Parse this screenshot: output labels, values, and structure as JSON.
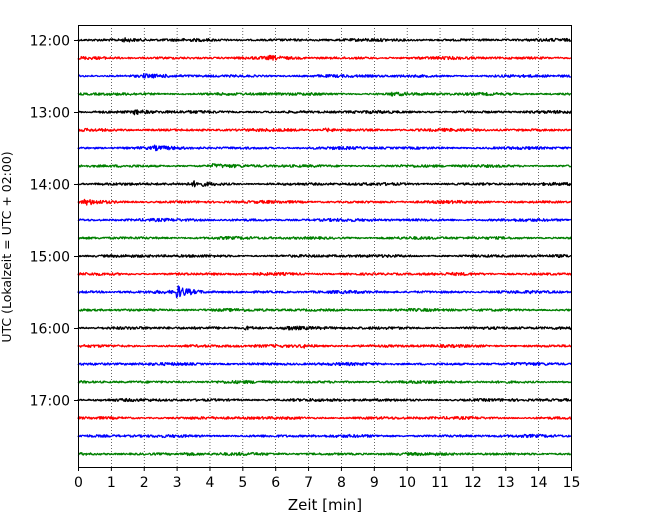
{
  "chart_data": {
    "type": "line",
    "subtype": "helicorder",
    "title": "",
    "xlabel": "Zeit  [min]",
    "ylabel": "UTC (Lokalzeit = UTC + 02:00)",
    "xlim": [
      0,
      15
    ],
    "x_ticks": [
      0,
      1,
      2,
      3,
      4,
      5,
      6,
      7,
      8,
      9,
      10,
      11,
      12,
      13,
      14,
      15
    ],
    "x_grid": "dotted vertical lines at each minute",
    "trace_interval_min": 15,
    "trace_colors": [
      "#000000",
      "#ff0000",
      "#0000ff",
      "#008000"
    ],
    "y_tick_labels": [
      "12:00",
      "13:00",
      "14:00",
      "15:00",
      "16:00",
      "17:00"
    ],
    "traces": [
      {
        "start": "12:00",
        "color": "#000000"
      },
      {
        "start": "12:15",
        "color": "#ff0000"
      },
      {
        "start": "12:30",
        "color": "#0000ff"
      },
      {
        "start": "12:45",
        "color": "#008000"
      },
      {
        "start": "13:00",
        "color": "#000000"
      },
      {
        "start": "13:15",
        "color": "#ff0000"
      },
      {
        "start": "13:30",
        "color": "#0000ff"
      },
      {
        "start": "13:45",
        "color": "#008000"
      },
      {
        "start": "14:00",
        "color": "#000000"
      },
      {
        "start": "14:15",
        "color": "#ff0000"
      },
      {
        "start": "14:30",
        "color": "#0000ff"
      },
      {
        "start": "14:45",
        "color": "#008000"
      },
      {
        "start": "15:00",
        "color": "#000000"
      },
      {
        "start": "15:15",
        "color": "#ff0000"
      },
      {
        "start": "15:30",
        "color": "#0000ff"
      },
      {
        "start": "15:45",
        "color": "#008000"
      },
      {
        "start": "16:00",
        "color": "#000000"
      },
      {
        "start": "16:15",
        "color": "#ff0000"
      },
      {
        "start": "16:30",
        "color": "#0000ff"
      },
      {
        "start": "16:45",
        "color": "#008000"
      },
      {
        "start": "17:00",
        "color": "#000000"
      },
      {
        "start": "17:15",
        "color": "#ff0000"
      },
      {
        "start": "17:30",
        "color": "#0000ff"
      },
      {
        "start": "17:45",
        "color": "#008000"
      }
    ],
    "events": [
      {
        "trace": "12:00",
        "minute": 1.4,
        "amplitude": 1.3
      },
      {
        "trace": "12:15",
        "minute": 5.8,
        "amplitude": 1.2
      },
      {
        "trace": "12:30",
        "minute": 2.0,
        "amplitude": 1.1
      },
      {
        "trace": "12:45",
        "minute": 9.5,
        "amplitude": 1.2
      },
      {
        "trace": "13:00",
        "minute": 1.7,
        "amplitude": 2.0
      },
      {
        "trace": "13:15",
        "minute": 7.5,
        "amplitude": 1.3
      },
      {
        "trace": "13:30",
        "minute": 2.3,
        "amplitude": 1.4
      },
      {
        "trace": "13:45",
        "minute": 4.1,
        "amplitude": 1.2
      },
      {
        "trace": "14:00",
        "minute": 3.5,
        "amplitude": 2.0
      },
      {
        "trace": "14:15",
        "minute": 0.2,
        "amplitude": 2.0
      },
      {
        "trace": "15:30",
        "minute": 3.0,
        "amplitude": 5.5
      },
      {
        "trace": "16:00",
        "minute": 5.1,
        "amplitude": 1.6
      },
      {
        "trace": "16:00",
        "minute": 6.3,
        "amplitude": 1.5
      },
      {
        "trace": "16:15",
        "minute": 6.8,
        "amplitude": 1.4
      },
      {
        "trace": "17:45",
        "minute": 3.2,
        "amplitude": 1.3
      }
    ]
  }
}
